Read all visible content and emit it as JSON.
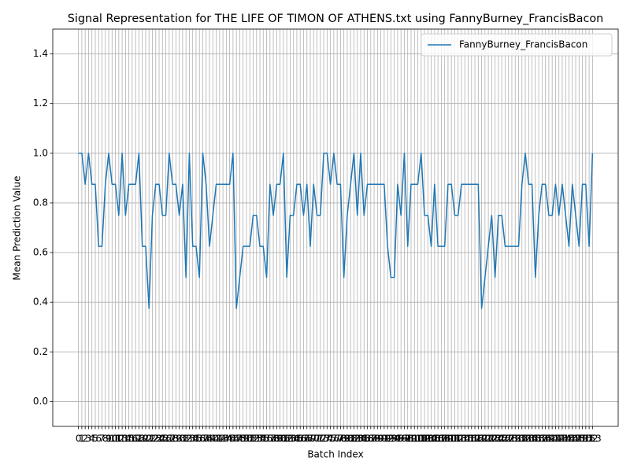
{
  "chart_data": {
    "type": "line",
    "title": "Signal Representation for THE LIFE OF TIMON OF ATHENS.txt using FannyBurney_FrancisBacon",
    "x_label": "Batch Index",
    "y_label": "Mean Prediction Value",
    "x": [
      0,
      1,
      2,
      3,
      4,
      5,
      6,
      7,
      8,
      9,
      10,
      11,
      12,
      13,
      14,
      15,
      16,
      17,
      18,
      19,
      20,
      21,
      22,
      23,
      24,
      25,
      26,
      27,
      28,
      29,
      30,
      31,
      32,
      33,
      34,
      35,
      36,
      37,
      38,
      39,
      40,
      41,
      42,
      43,
      44,
      45,
      46,
      47,
      48,
      49,
      50,
      51,
      52,
      53,
      54,
      55,
      56,
      57,
      58,
      59,
      60,
      61,
      62,
      63,
      64,
      65,
      66,
      67,
      68,
      69,
      70,
      71,
      72,
      73,
      74,
      75,
      76,
      77,
      78,
      79,
      80,
      81,
      82,
      83,
      84,
      85,
      86,
      87,
      88,
      89,
      90,
      91,
      92,
      93,
      94,
      95,
      96,
      97,
      98,
      99,
      100,
      101,
      102,
      103,
      104,
      105,
      106,
      107,
      108,
      109,
      110,
      111,
      112,
      113,
      114,
      115,
      116,
      117,
      118,
      119,
      120,
      121,
      122,
      123,
      124,
      125,
      126,
      127,
      128,
      129,
      130,
      131,
      132,
      133,
      134,
      135,
      136,
      137,
      138,
      139,
      140,
      141,
      142,
      143,
      144,
      145,
      146,
      147,
      148,
      149,
      150,
      151,
      152,
      153
    ],
    "series": [
      {
        "name": "FannyBurney_FrancisBacon",
        "color": "#1f77b4",
        "values": [
          1,
          1,
          0.875,
          1,
          0.875,
          0.875,
          0.625,
          0.625,
          0.875,
          1,
          0.875,
          0.875,
          0.75,
          1,
          0.75,
          0.875,
          0.875,
          0.875,
          1,
          0.625,
          0.625,
          0.375,
          0.75,
          0.875,
          0.875,
          0.75,
          0.75,
          1,
          0.875,
          0.875,
          0.75,
          0.875,
          0.5,
          1,
          0.625,
          0.625,
          0.5,
          1,
          0.875,
          0.625,
          0.75,
          0.875,
          0.875,
          0.875,
          0.875,
          0.875,
          1,
          0.375,
          0.5,
          0.625,
          0.625,
          0.625,
          0.75,
          0.75,
          0.625,
          0.625,
          0.5,
          0.875,
          0.75,
          0.875,
          0.875,
          1,
          0.5,
          0.75,
          0.75,
          0.875,
          0.875,
          0.75,
          0.875,
          0.625,
          0.875,
          0.75,
          0.75,
          1,
          1,
          0.875,
          1,
          0.875,
          0.875,
          0.5,
          0.75,
          0.875,
          1,
          0.75,
          1,
          0.75,
          0.875,
          0.875,
          0.875,
          0.875,
          0.875,
          0.875,
          0.625,
          0.5,
          0.5,
          0.875,
          0.75,
          1,
          0.625,
          0.875,
          0.875,
          0.875,
          1,
          0.75,
          0.75,
          0.625,
          0.875,
          0.625,
          0.625,
          0.625,
          0.875,
          0.875,
          0.75,
          0.75,
          0.875,
          0.875,
          0.875,
          0.875,
          0.875,
          0.875,
          0.375,
          0.5,
          0.625,
          0.75,
          0.5,
          0.75,
          0.75,
          0.625,
          0.625,
          0.625,
          0.625,
          0.625,
          0.875,
          1,
          0.875,
          0.875,
          0.5,
          0.75,
          0.875,
          0.875,
          0.75,
          0.75,
          0.875,
          0.75,
          0.875,
          0.75,
          0.625,
          0.875,
          0.75,
          0.625,
          0.875,
          0.875,
          0.625,
          1
        ]
      }
    ],
    "xlim": [
      -7.65,
      160.65
    ],
    "xticks": [
      0,
      1,
      2,
      3,
      4,
      5,
      6,
      7,
      8,
      9,
      10,
      11,
      12,
      13,
      14,
      15,
      16,
      17,
      18,
      19,
      20,
      21,
      22,
      23,
      24,
      25,
      26,
      27,
      28,
      29,
      30,
      31,
      32,
      33,
      34,
      35,
      36,
      37,
      38,
      39,
      40,
      41,
      42,
      43,
      44,
      45,
      46,
      47,
      48,
      49,
      50,
      51,
      52,
      53,
      54,
      55,
      56,
      57,
      58,
      59,
      60,
      61,
      62,
      63,
      64,
      65,
      66,
      67,
      68,
      69,
      70,
      71,
      72,
      73,
      74,
      75,
      76,
      77,
      78,
      79,
      80,
      81,
      82,
      83,
      84,
      85,
      86,
      87,
      88,
      89,
      90,
      91,
      92,
      93,
      94,
      95,
      96,
      97,
      98,
      99,
      100,
      101,
      102,
      103,
      104,
      105,
      106,
      107,
      108,
      109,
      110,
      111,
      112,
      113,
      114,
      115,
      116,
      117,
      118,
      119,
      120,
      121,
      122,
      123,
      124,
      125,
      126,
      127,
      128,
      129,
      130,
      131,
      132,
      133,
      134,
      135,
      136,
      137,
      138,
      139,
      140,
      141,
      142,
      143,
      144,
      145,
      146,
      147,
      148,
      149,
      150,
      151,
      152,
      153
    ],
    "ylim": [
      -0.1,
      1.5
    ],
    "yticks": [
      {
        "value": 0,
        "label": "0.0"
      },
      0.2,
      0.4,
      0.6,
      0.8,
      {
        "value": 1,
        "label": "1.0"
      },
      1.2,
      1.4
    ],
    "grid": true,
    "legend": "upper right"
  }
}
